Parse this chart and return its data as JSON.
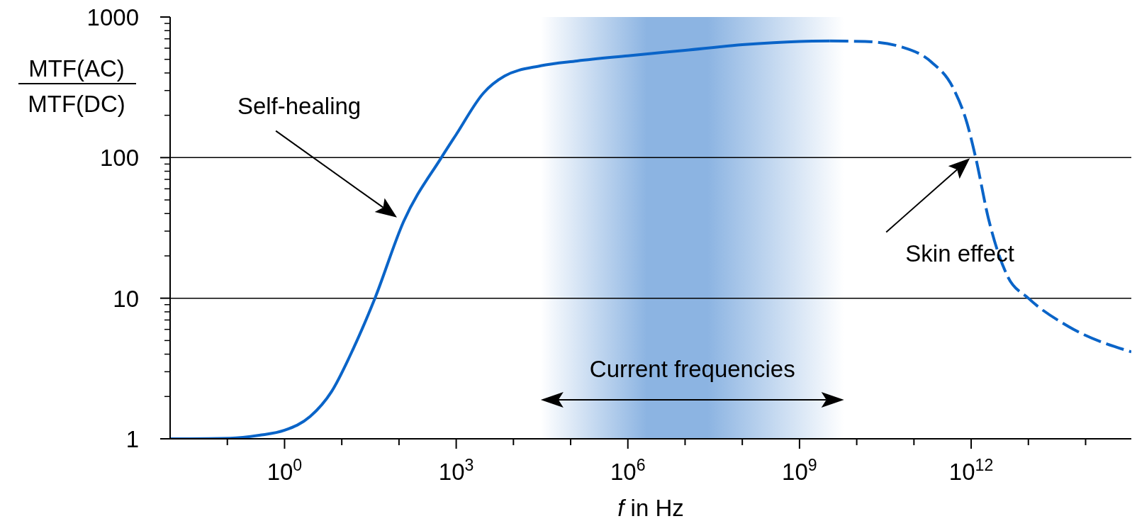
{
  "chart_data": {
    "type": "line",
    "xlabel": "f in Hz",
    "ylabel": "MTF(AC)\nMTF(DC)",
    "log": "xy",
    "grid": "y",
    "marker": "none",
    "xlim": [
      0.01,
      630000000000000
    ],
    "xticks": [
      {
        "value": 0.1,
        "label": null
      },
      {
        "value": 1,
        "label": "10$^{0}$"
      },
      {
        "value": 10,
        "label": null
      },
      {
        "value": 100,
        "label": null
      },
      {
        "value": 1000,
        "label": "10$^{3}$"
      },
      {
        "value": 10000,
        "label": null
      },
      {
        "value": 100000,
        "label": null
      },
      {
        "value": 1000000,
        "label": "10$^{6}$"
      },
      {
        "value": 10000000,
        "label": null
      },
      {
        "value": 100000000,
        "label": null
      },
      {
        "value": 1000000000,
        "label": "10$^{9}$"
      },
      {
        "value": 10000000000,
        "label": null
      },
      {
        "value": 100000000000,
        "label": null
      },
      {
        "value": 1000000000000,
        "label": "10$^{12}$"
      },
      {
        "value": 10000000000000,
        "label": null
      },
      {
        "value": 100000000000000,
        "label": null
      }
    ],
    "ylim": [
      1,
      1000
    ],
    "yticks": [
      1,
      {
        "value": 2,
        "label": null
      },
      {
        "value": 3,
        "label": null
      },
      {
        "value": 4,
        "label": null
      },
      {
        "value": 5,
        "label": null
      },
      {
        "value": 6,
        "label": null
      },
      {
        "value": 7,
        "label": null
      },
      {
        "value": 8,
        "label": null
      },
      {
        "value": 9,
        "label": null
      },
      10,
      {
        "value": 20,
        "label": null
      },
      {
        "value": 30,
        "label": null
      },
      {
        "value": 40,
        "label": null
      },
      {
        "value": 50,
        "label": null
      },
      {
        "value": 60,
        "label": null
      },
      {
        "value": 70,
        "label": null
      },
      {
        "value": 80,
        "label": null
      },
      {
        "value": 90,
        "label": null
      },
      100,
      {
        "value": 200,
        "label": null
      },
      {
        "value": 300,
        "label": null
      },
      {
        "value": 400,
        "label": null
      },
      {
        "value": 500,
        "label": null
      },
      {
        "value": 600,
        "label": null
      },
      {
        "value": 700,
        "label": null
      },
      {
        "value": 800,
        "label": null
      },
      {
        "value": 900,
        "label": null
      },
      1000
    ],
    "series": [
      {
        "color": "#0a64c8",
        "line_style": "solid",
        "x": [
          0.01,
          0.11,
          0.36,
          1,
          2.8,
          6.6,
          16,
          38,
          120,
          550,
          1000,
          3000,
          7000,
          30000,
          130000,
          1000000,
          10000000,
          100000000,
          1000000000,
          3400000000
        ],
        "values": [
          1,
          1.01,
          1.06,
          1.15,
          1.44,
          2.16,
          4.4,
          10,
          35,
          100,
          146,
          288,
          380,
          450,
          487,
          530,
          580,
          635,
          670,
          675
        ]
      },
      {
        "color": "#0a64c8",
        "line_style": "dashed",
        "x": [
          3400000000,
          14000000000,
          63000000000,
          200000000000,
          480000000000,
          850000000000,
          1200000000000,
          2000000000000,
          4300000000000,
          10000000000000,
          50000000000000,
          630000000000000
        ],
        "values": [
          675,
          670,
          610,
          480,
          315,
          175,
          100,
          37,
          14.4,
          10,
          6.3,
          4.15
        ]
      }
    ],
    "bands": [
      {
        "axis": "x",
        "from": 30000,
        "to": 6000000000,
        "label": "Current frequencies",
        "color": "#8cb4e2"
      }
    ],
    "annotations": [
      "Self-healing",
      "Skin effect"
    ]
  }
}
